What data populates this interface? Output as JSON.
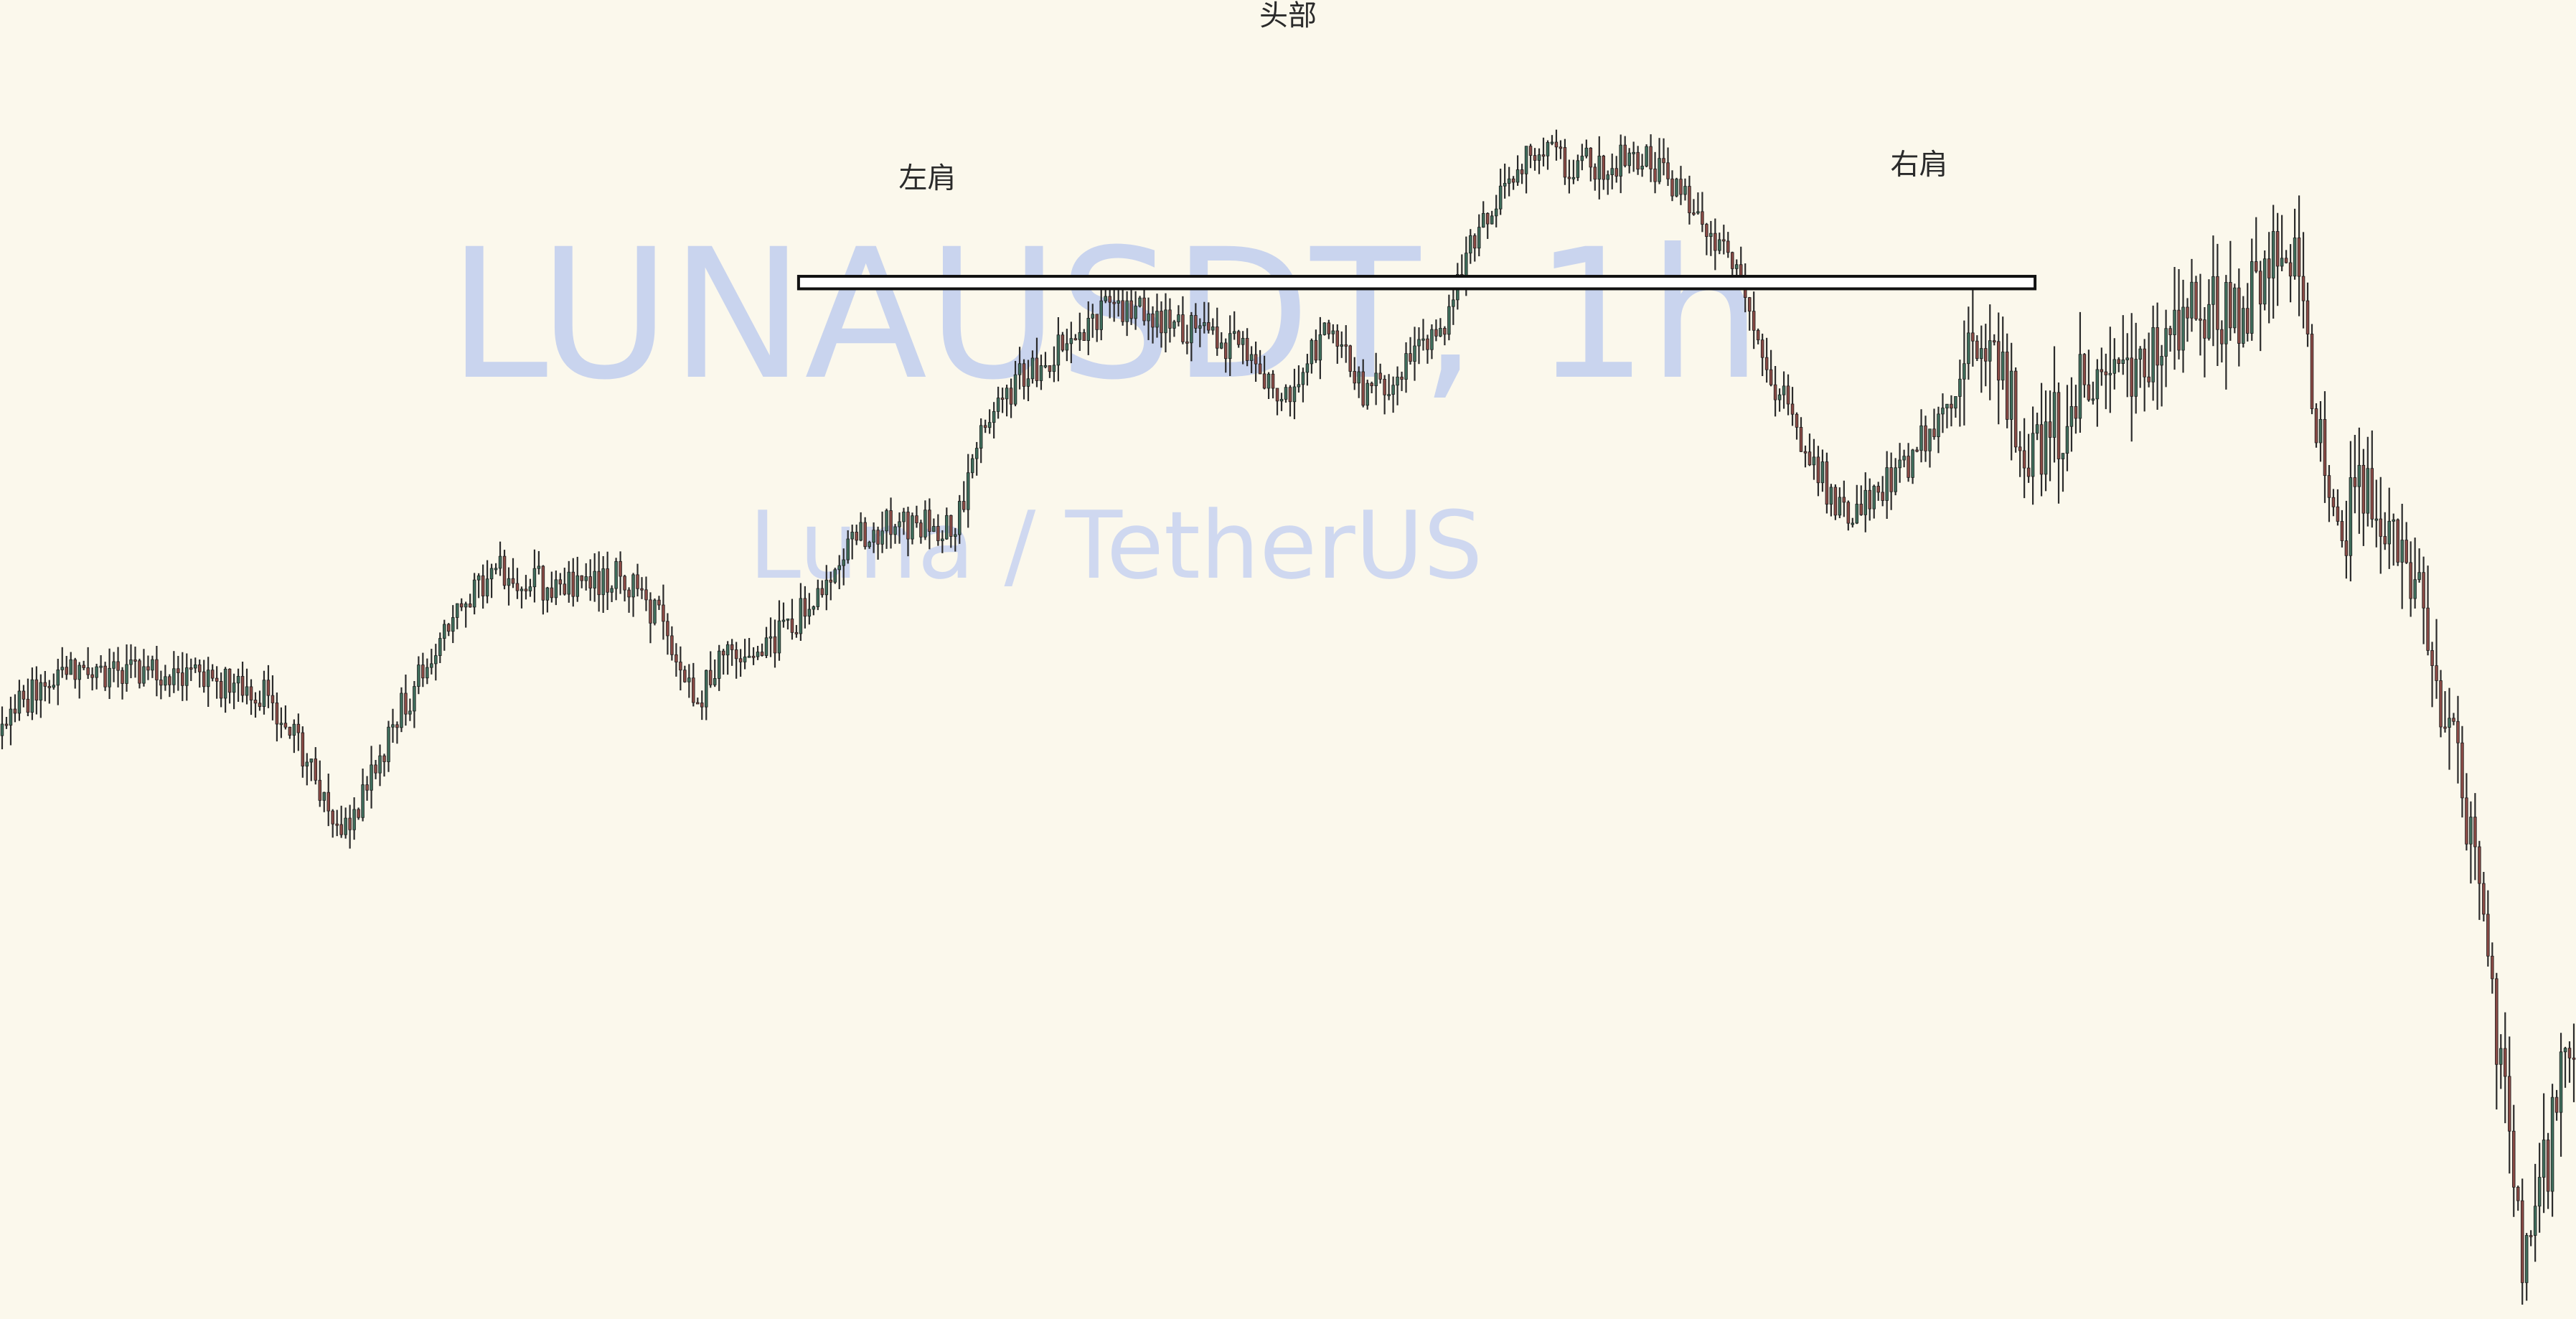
{
  "watermark": {
    "symbol": "LUNAUSDT, 1h",
    "description": "Luna / TetherUS"
  },
  "annotations": {
    "left_shoulder": "左肩",
    "head": "头部",
    "right_shoulder": "右肩"
  },
  "colors": {
    "background": "#fbf8ec",
    "candle_up": "#3f6e5c",
    "candle_down": "#8a4a45",
    "neckline_stroke": "#111111",
    "neckline_fill": "#ffffff",
    "watermark": "#c9d4ee"
  },
  "chart_data": {
    "type": "candlestick",
    "pattern": "head-and-shoulders",
    "bar_count": 600,
    "price_profile": {
      "index": [
        0,
        15,
        35,
        55,
        80,
        105,
        135,
        155,
        175,
        195,
        215,
        240,
        255,
        270,
        285,
        300,
        315,
        330,
        345,
        370,
        385,
        405,
        425,
        445,
        465,
        480,
        500,
        515,
        530,
        545,
        560,
        575,
        595,
        610,
        625,
        640,
        650,
        670,
        690,
        715,
        740,
        770,
        790,
        810,
        830,
        850,
        870,
        890,
        905,
        920,
        940,
        960,
        980,
        1000
      ],
      "value": [
        8.43,
        8.91,
        9.03,
        8.97,
        8.95,
        8.79,
        7.54,
        8.62,
        9.44,
        9.91,
        9.71,
        9.87,
        9.48,
        8.74,
        9.21,
        9.26,
        9.61,
        10.11,
        10.28,
        10.26,
        11.37,
        11.71,
        12.13,
        12.18,
        11.98,
        11.84,
        11.35,
        12.07,
        11.42,
        11.66,
        11.95,
        12.99,
        13.59,
        13.45,
        13.47,
        13.49,
        13.21,
        12.73,
        11.47,
        10.35,
        10.78,
        11.95,
        10.78,
        11.64,
        11.72,
        12.22,
        12.23,
        12.76,
        10.19,
        10.58,
        9.48,
        7.57,
        3.68,
        6.01
      ]
    },
    "neckline": {
      "value_top": 12.47,
      "value_bottom": 12.36,
      "start_index": 310,
      "end_index": 790
    },
    "annotations": [
      {
        "text_key": "left_shoulder",
        "index": 360,
        "value": 13.25
      },
      {
        "text_key": "head",
        "index": 500,
        "value": 14.68
      },
      {
        "text_key": "right_shoulder",
        "index": 745,
        "value": 13.37
      }
    ],
    "ylim": [
      3.3,
      14.9
    ],
    "grid": false
  }
}
